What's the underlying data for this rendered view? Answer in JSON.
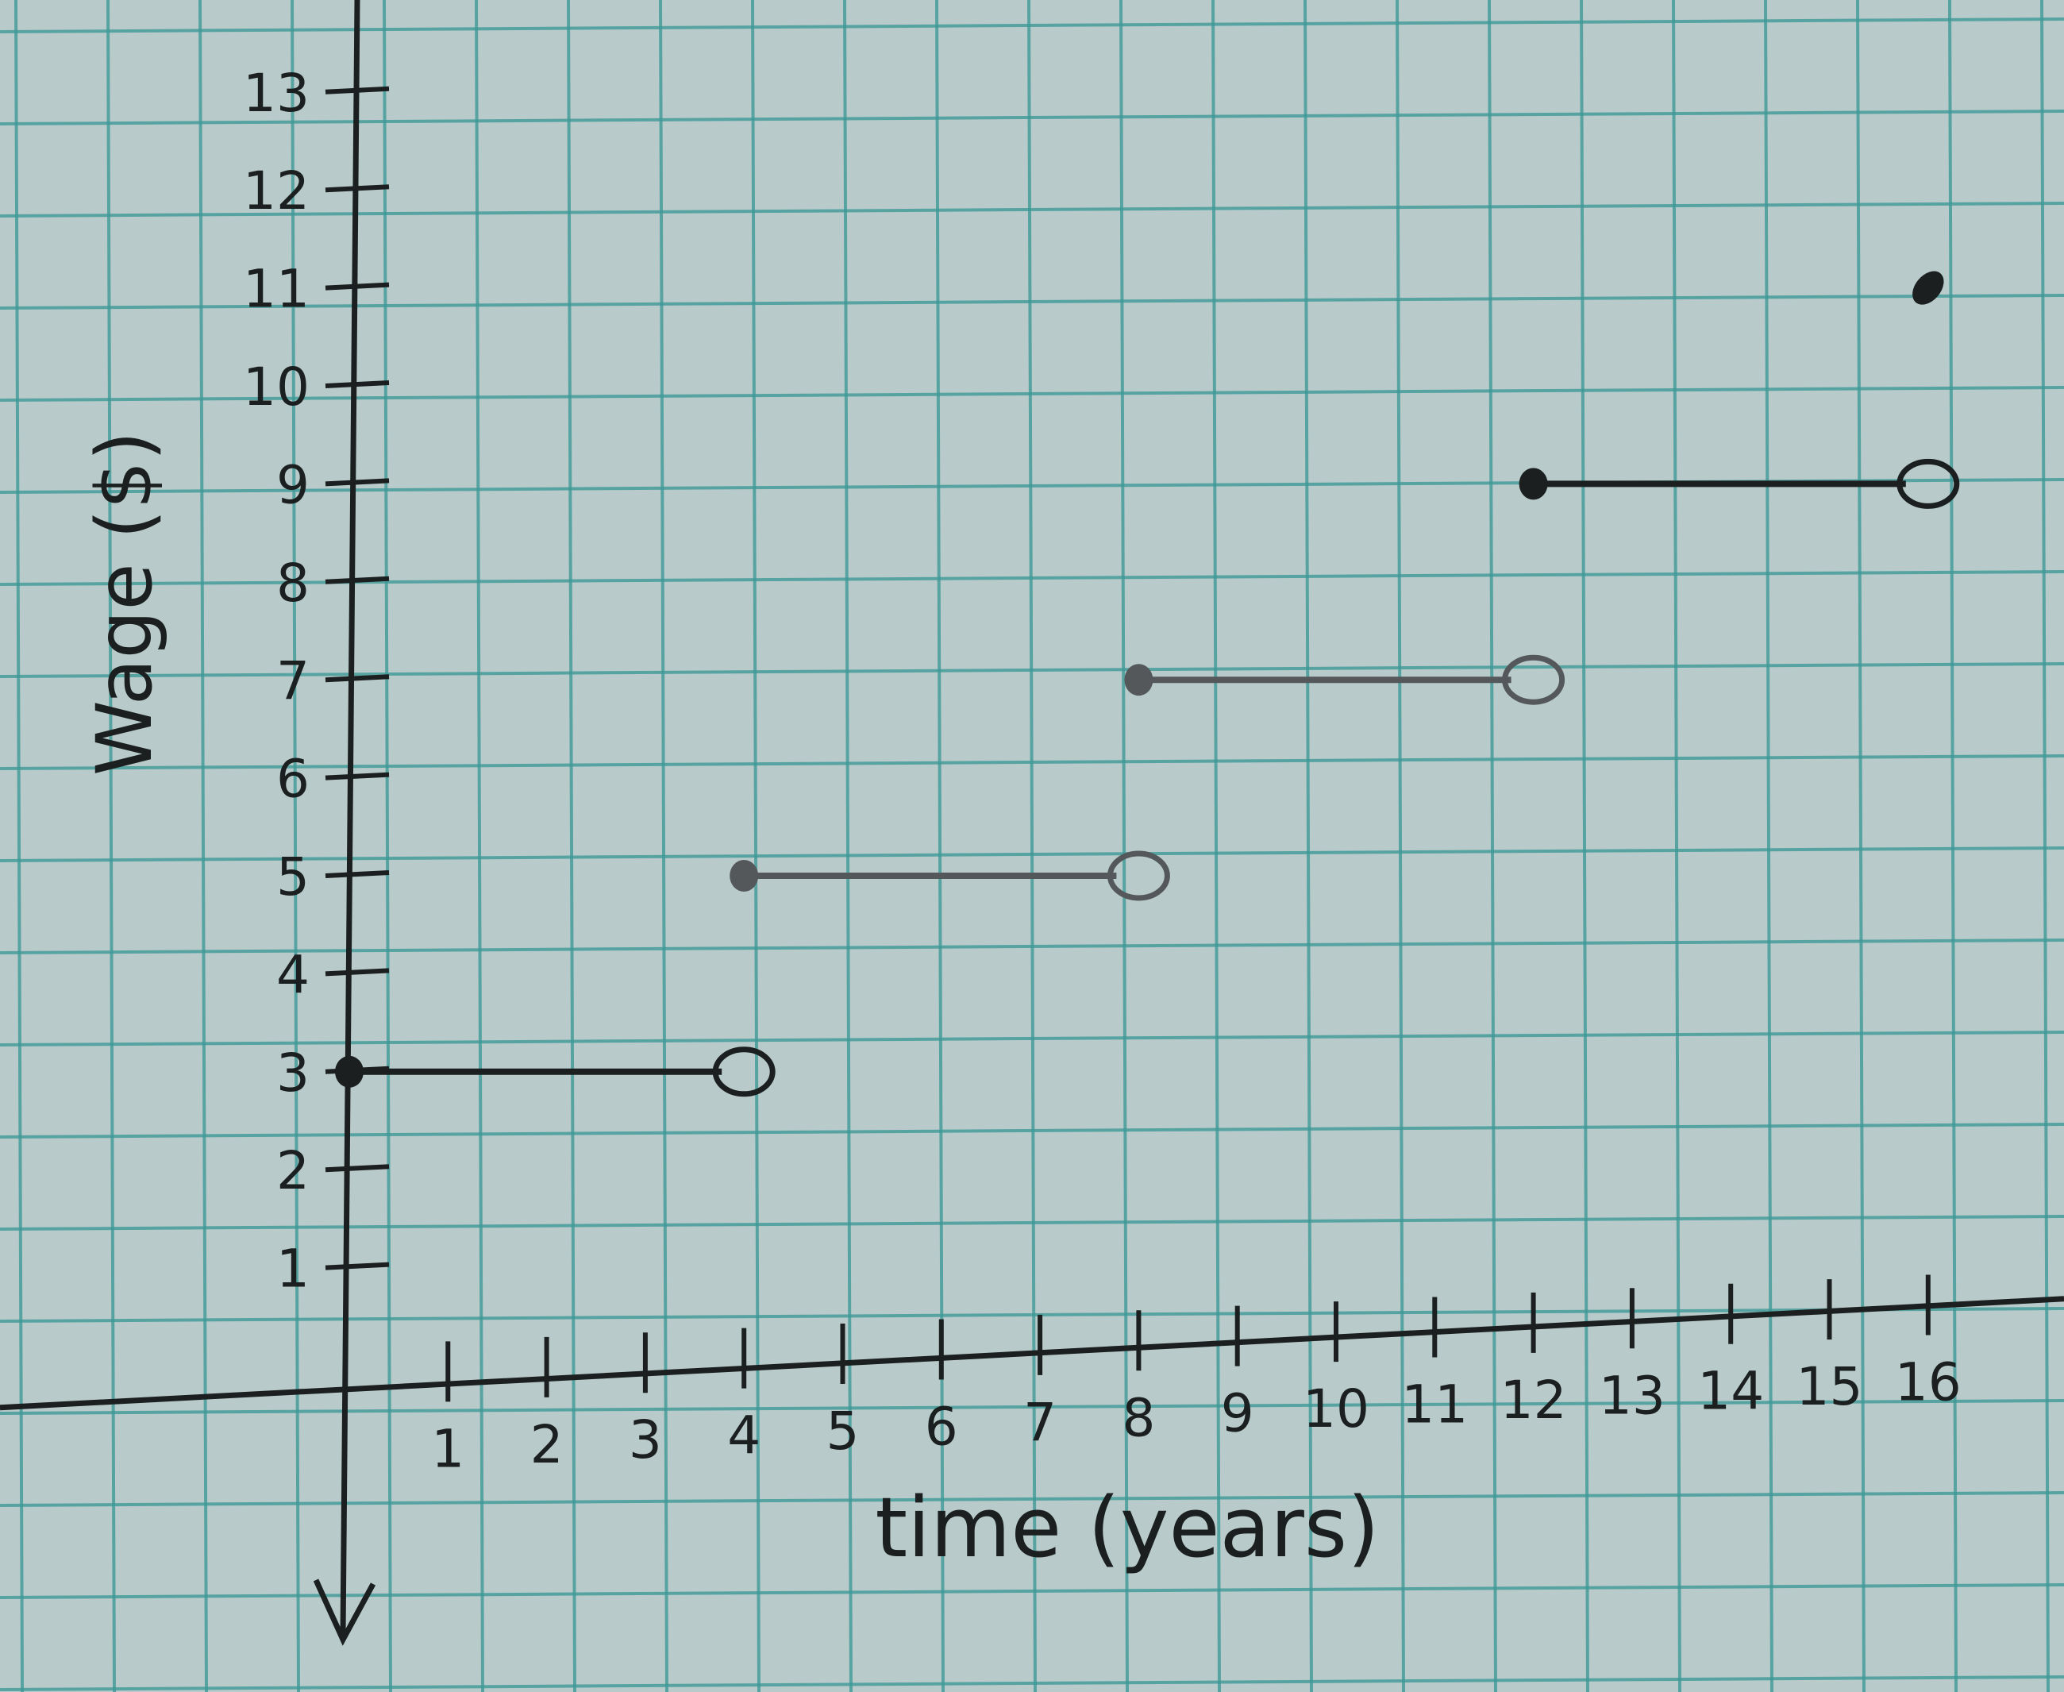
{
  "chart_data": {
    "type": "line",
    "subtype": "step",
    "title": "",
    "xlabel": "time (years)",
    "ylabel": "Wage ($)",
    "xlim": [
      0,
      16
    ],
    "ylim": [
      0,
      13
    ],
    "x_ticks": [
      "1",
      "2",
      "3",
      "4",
      "5",
      "6",
      "7",
      "8",
      "9",
      "10",
      "11",
      "12",
      "13",
      "14",
      "15",
      "16"
    ],
    "y_ticks": [
      "1",
      "2",
      "3",
      "4",
      "5",
      "6",
      "7",
      "8",
      "9",
      "10",
      "11",
      "12",
      "13"
    ],
    "grid": true,
    "segments": [
      {
        "x_start": 0,
        "x_end": 4,
        "y": 3,
        "start": "closed",
        "end": "open"
      },
      {
        "x_start": 4,
        "x_end": 8,
        "y": 5,
        "start": "closed",
        "end": "open"
      },
      {
        "x_start": 8,
        "x_end": 12,
        "y": 7,
        "start": "closed",
        "end": "open"
      },
      {
        "x_start": 12,
        "x_end": 16,
        "y": 9,
        "start": "closed",
        "end": "open"
      }
    ],
    "points": [
      {
        "x": 16,
        "y": 11,
        "type": "closed"
      }
    ],
    "colors": {
      "paper": "#b8cbca",
      "grid": "#3f9a98",
      "ink": "#1b1f1f",
      "pencil": "#55585a"
    }
  }
}
